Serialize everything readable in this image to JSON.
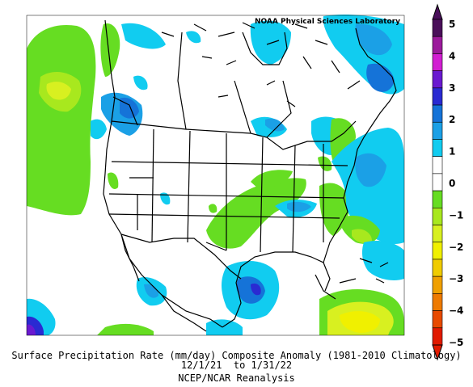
{
  "map": {
    "credit": "NOAA Physical Sciences Laboratory",
    "title_line1": "Surface Precipitation Rate (mm/day) Composite Anomaly (1981-2010 Climatology)",
    "title_line2": "12/1/21  to 1/31/22",
    "title_line3": "NCEP/NCAR Reanalysis"
  },
  "colorbar": {
    "labels": [
      "5",
      "4",
      "3",
      "2",
      "1",
      "0",
      "-1",
      "-2",
      "-3",
      "-4",
      "-5"
    ],
    "colors": [
      "#4a0f5a",
      "#9c1a9c",
      "#d21ed2",
      "#6a19d0",
      "#2a2ad2",
      "#1573d8",
      "#1ba0e6",
      "#11ccf0",
      "#ffffff",
      "#ffffff",
      "#66dd22",
      "#a8e81e",
      "#d8f020",
      "#f0f000",
      "#f0cc00",
      "#f0a000",
      "#ee7a00",
      "#e84a00",
      "#e11a00"
    ]
  }
}
